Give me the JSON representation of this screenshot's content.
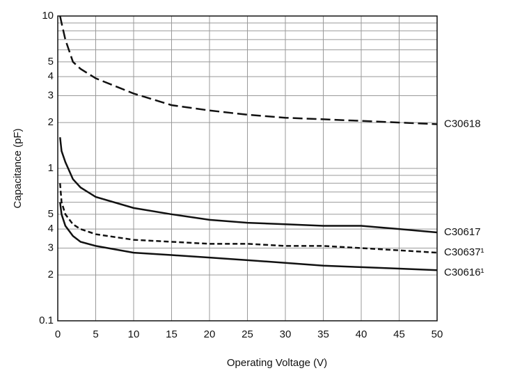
{
  "chart_data": {
    "type": "line",
    "x_label": "Operating Voltage (V)",
    "y_label": "Capacitance (pF)",
    "x": [
      0.3,
      0.5,
      1,
      2,
      3,
      5,
      10,
      15,
      20,
      25,
      30,
      35,
      40,
      45,
      50
    ],
    "xlim": [
      0,
      50
    ],
    "xticks": [
      0,
      5,
      10,
      15,
      20,
      25,
      30,
      35,
      40,
      45,
      50
    ],
    "ylim": [
      0.1,
      10
    ],
    "y_log": true,
    "yticks": [
      {
        "value": 0.1,
        "label": "0.1"
      },
      {
        "value": 0.2,
        "label": "2"
      },
      {
        "value": 0.3,
        "label": "3"
      },
      {
        "value": 0.4,
        "label": "4"
      },
      {
        "value": 0.5,
        "label": "5"
      },
      1,
      2,
      3,
      4,
      5,
      10
    ],
    "y_minor_ticks": [
      0.6,
      0.7,
      0.8,
      0.9,
      6,
      7,
      8,
      9
    ],
    "grid": true,
    "series": [
      {
        "name": "C30618",
        "color": "#111",
        "dash": "long",
        "values": [
          10,
          9,
          7,
          5,
          4.5,
          3.9,
          3.1,
          2.6,
          2.4,
          2.25,
          2.15,
          2.1,
          2.05,
          2.0,
          1.95
        ]
      },
      {
        "name": "C30617",
        "color": "#111",
        "dash": "solid",
        "values": [
          1.6,
          1.3,
          1.1,
          0.85,
          0.75,
          0.65,
          0.55,
          0.5,
          0.46,
          0.44,
          0.43,
          0.42,
          0.42,
          0.4,
          0.38
        ]
      },
      {
        "name": "C30637¹",
        "color": "#111",
        "dash": "short",
        "values": [
          0.8,
          0.6,
          0.5,
          0.43,
          0.4,
          0.37,
          0.34,
          0.33,
          0.32,
          0.32,
          0.31,
          0.31,
          0.3,
          0.29,
          0.28
        ]
      },
      {
        "name": "C30616¹",
        "color": "#111",
        "dash": "solid",
        "values": [
          0.6,
          0.5,
          0.42,
          0.36,
          0.33,
          0.31,
          0.28,
          0.27,
          0.26,
          0.25,
          0.24,
          0.23,
          0.225,
          0.22,
          0.215
        ]
      }
    ]
  }
}
